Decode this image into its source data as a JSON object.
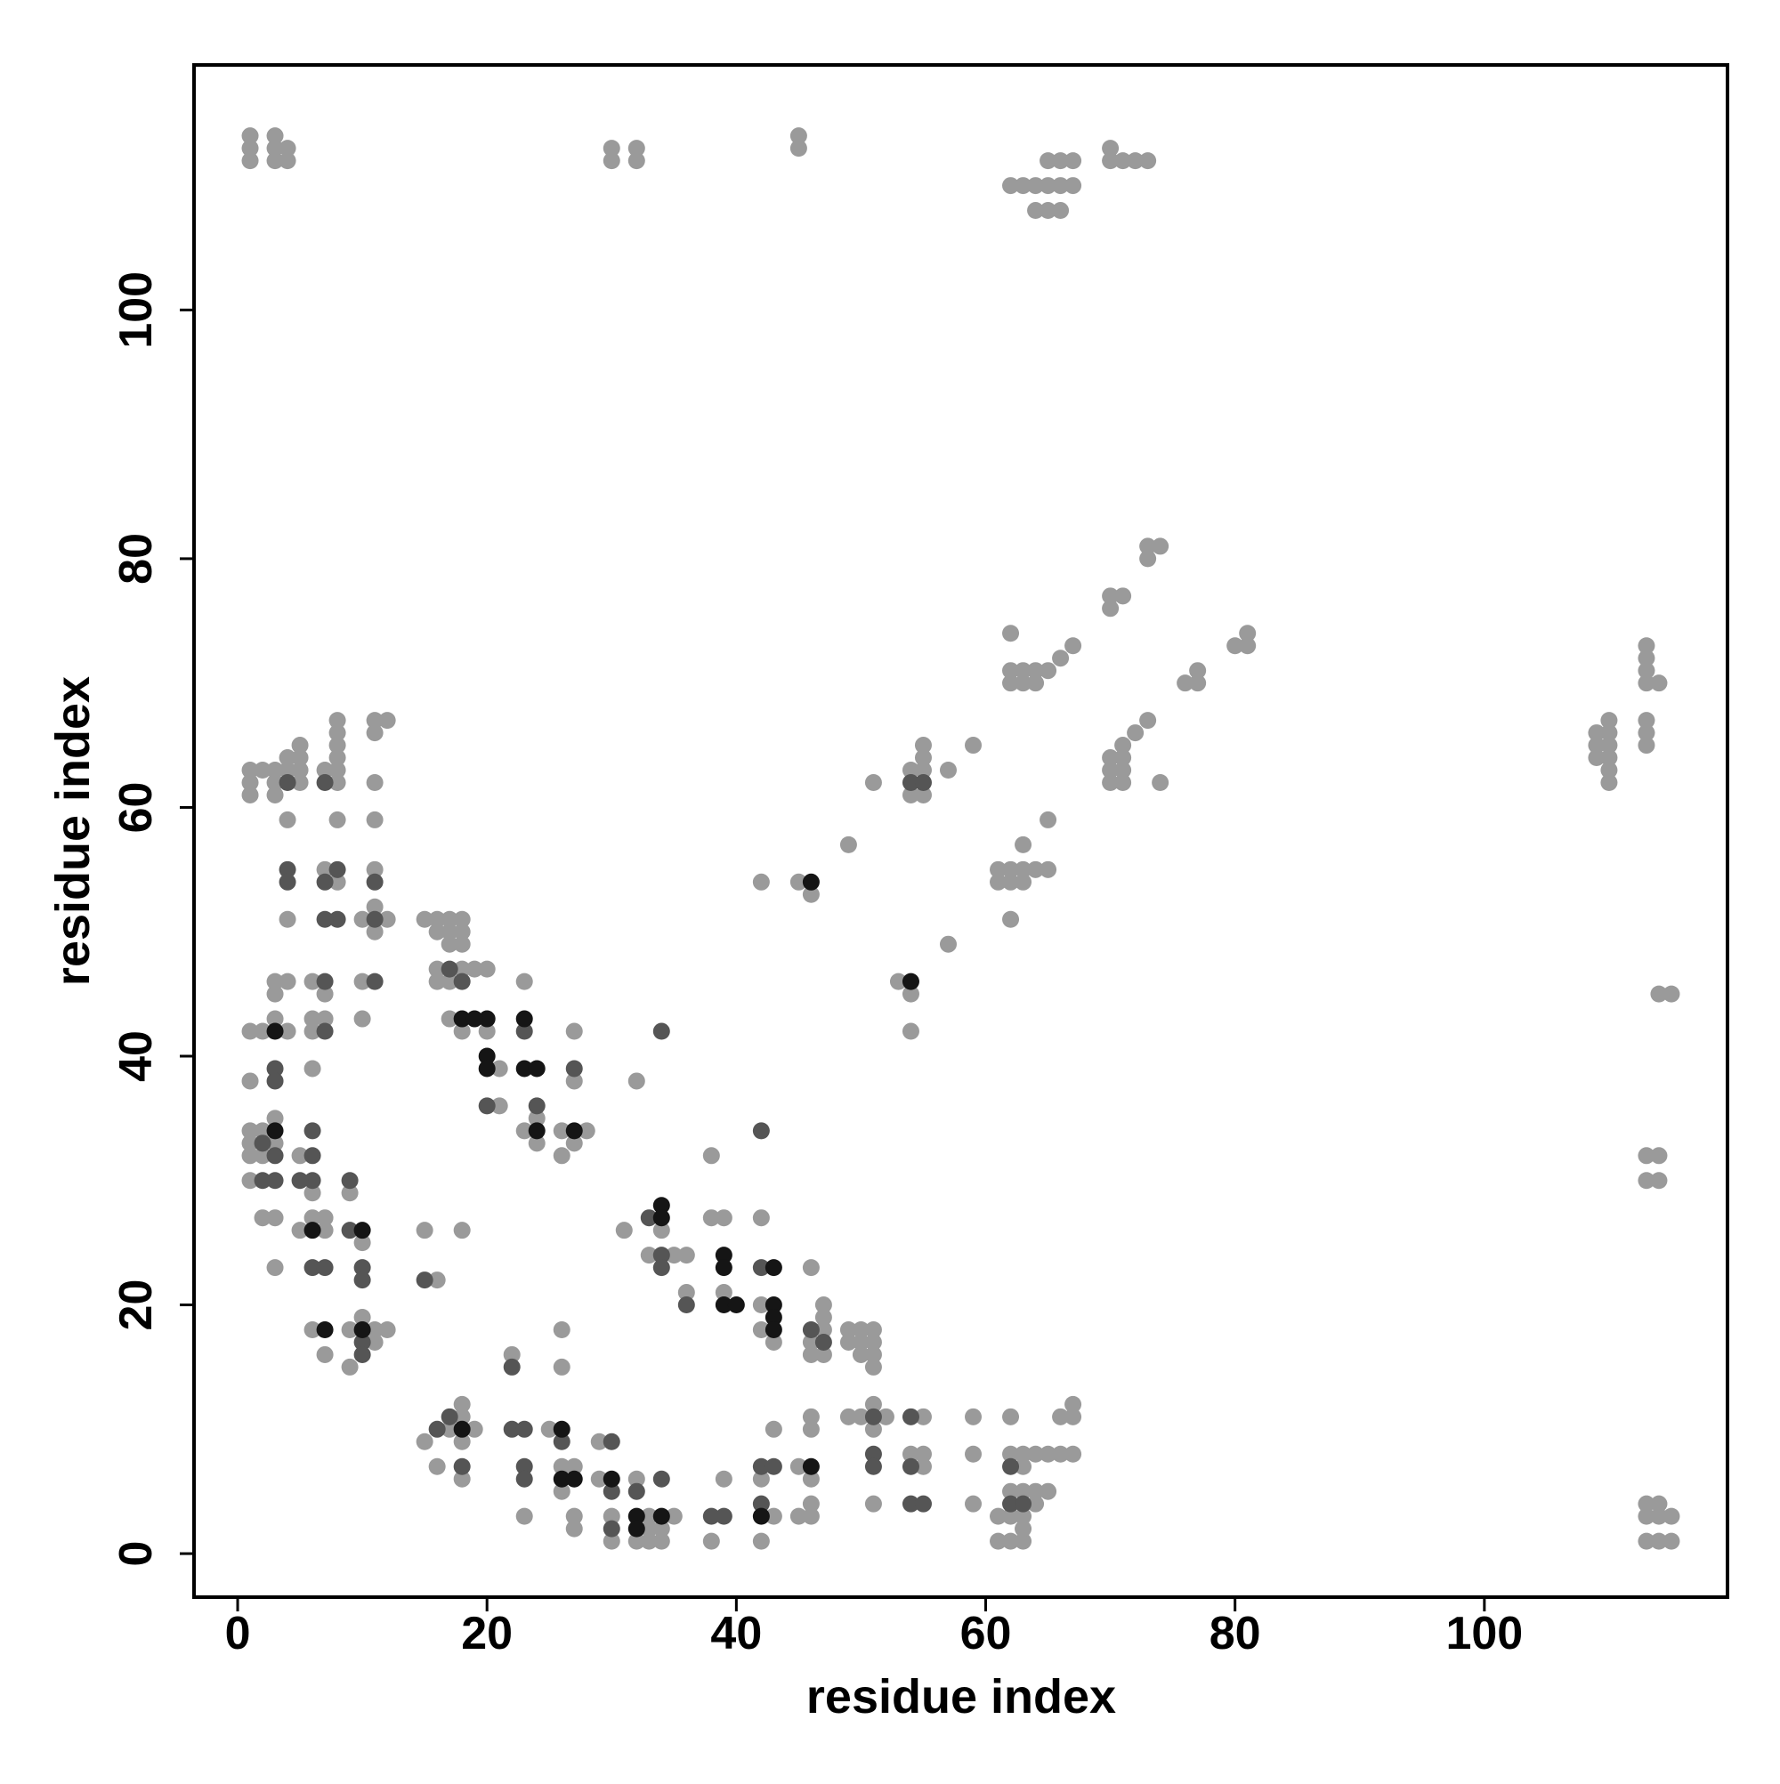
{
  "chart_data": {
    "type": "scatter",
    "x_label": "residue index",
    "y_label": "residue index",
    "xlim": [
      -3.5,
      119.5
    ],
    "ylim": [
      -3.5,
      119.7
    ],
    "xticks": [
      0,
      20,
      40,
      60,
      80,
      100
    ],
    "yticks": [
      0,
      20,
      40,
      60,
      80,
      100
    ],
    "grid": false,
    "series": [
      {
        "color": "#9a9a9a",
        "x": [
          1,
          1,
          1,
          3,
          3,
          3,
          4,
          4,
          30,
          30,
          32,
          32,
          45,
          45,
          62,
          63,
          64,
          65,
          66,
          67,
          64,
          65,
          66,
          65,
          66,
          67,
          70,
          70,
          71,
          72,
          73
        ],
        "values": [
          112,
          113,
          114,
          112,
          113,
          114,
          112,
          113,
          112,
          113,
          112,
          113,
          113,
          114,
          110,
          110,
          110,
          110,
          110,
          110,
          108,
          108,
          108,
          112,
          112,
          112,
          112,
          113,
          112,
          112,
          112
        ]
      },
      {
        "color": "#9a9a9a",
        "x": [
          73,
          73,
          74,
          70,
          70,
          71,
          62,
          62,
          62,
          63,
          63,
          64,
          64,
          65,
          66,
          67,
          80,
          81,
          81,
          76,
          77,
          77,
          72,
          73,
          74,
          70,
          70,
          70,
          71,
          71,
          71,
          71,
          65,
          63,
          61,
          61,
          62,
          62,
          63,
          63,
          64,
          65,
          62,
          59,
          57,
          51,
          54,
          54,
          55,
          55,
          55,
          55,
          49,
          57,
          54,
          54,
          53,
          45,
          46,
          42
        ],
        "values": [
          80,
          81,
          81,
          76,
          77,
          77,
          74,
          70,
          71,
          70,
          71,
          70,
          71,
          71,
          72,
          73,
          73,
          73,
          74,
          70,
          70,
          71,
          66,
          67,
          62,
          62,
          63,
          64,
          62,
          63,
          64,
          65,
          59,
          57,
          54,
          55,
          54,
          55,
          54,
          55,
          55,
          55,
          51,
          65,
          63,
          62,
          61,
          63,
          61,
          63,
          64,
          65,
          57,
          49,
          42,
          45,
          46,
          54,
          53,
          54
        ]
      },
      {
        "color": "#9a9a9a",
        "x": [
          109,
          109,
          109,
          110,
          110,
          110,
          110,
          110,
          110,
          113,
          113,
          113,
          113,
          113,
          113,
          113,
          114,
          114,
          115,
          113,
          113,
          114,
          114,
          113,
          113,
          113,
          114,
          114,
          114,
          115,
          115
        ],
        "values": [
          64,
          65,
          66,
          62,
          63,
          64,
          65,
          66,
          67,
          65,
          66,
          67,
          70,
          71,
          72,
          73,
          70,
          45,
          45,
          30,
          32,
          30,
          32,
          1,
          3,
          4,
          1,
          3,
          4,
          1,
          3
        ]
      },
      {
        "color": "#9a9a9a",
        "x": [
          1,
          1,
          1,
          2,
          3,
          3,
          3,
          4,
          4,
          5,
          5,
          5,
          5,
          7,
          8,
          8,
          8,
          8,
          8,
          8,
          11,
          11,
          12,
          11,
          4,
          8,
          11,
          7,
          8,
          11,
          11,
          11,
          12,
          10,
          4,
          3,
          4,
          6,
          10,
          3,
          7,
          3,
          6,
          7,
          10,
          1,
          2,
          4,
          6,
          1,
          6,
          1,
          1,
          1,
          1,
          2,
          2,
          3,
          3,
          2,
          3,
          5,
          6,
          6,
          7,
          7,
          5,
          9,
          10,
          3,
          6,
          7,
          9,
          9,
          10,
          11,
          11,
          12
        ],
        "values": [
          61,
          62,
          63,
          63,
          61,
          62,
          63,
          63,
          64,
          62,
          63,
          64,
          65,
          63,
          62,
          63,
          64,
          65,
          66,
          67,
          66,
          67,
          67,
          62,
          59,
          59,
          59,
          55,
          54,
          55,
          52,
          50,
          51,
          51,
          51,
          46,
          46,
          46,
          46,
          45,
          45,
          43,
          43,
          43,
          43,
          42,
          42,
          42,
          42,
          38,
          39,
          34,
          33,
          32,
          30,
          34,
          32,
          33,
          35,
          27,
          27,
          32,
          29,
          27,
          27,
          26,
          26,
          29,
          25,
          23,
          18,
          16,
          18,
          15,
          19,
          18,
          17,
          18
        ]
      },
      {
        "color": "#9a9a9a",
        "x": [
          15,
          16,
          17,
          18,
          16,
          17,
          17,
          18,
          18,
          16,
          18,
          19,
          20,
          16,
          17,
          17,
          18,
          20,
          21,
          21,
          23,
          24,
          23,
          24,
          27,
          27,
          26,
          28,
          27,
          26,
          32,
          15,
          18,
          16,
          31,
          34,
          33,
          35,
          36,
          36,
          38,
          38,
          39,
          39,
          42,
          42,
          42,
          43,
          46,
          47,
          47,
          47,
          46,
          46,
          47,
          49,
          50,
          51,
          49,
          50,
          51,
          50,
          51,
          51,
          22,
          26,
          26
        ],
        "values": [
          51,
          51,
          51,
          51,
          50,
          50,
          49,
          50,
          49,
          47,
          47,
          47,
          47,
          46,
          46,
          43,
          42,
          42,
          39,
          36,
          46,
          35,
          34,
          33,
          42,
          38,
          34,
          34,
          33,
          32,
          38,
          26,
          26,
          22,
          26,
          26,
          24,
          24,
          24,
          21,
          32,
          27,
          27,
          21,
          27,
          20,
          18,
          17,
          23,
          18,
          20,
          19,
          17,
          16,
          16,
          18,
          18,
          18,
          17,
          17,
          17,
          16,
          16,
          15,
          16,
          18,
          15
        ]
      },
      {
        "color": "#9a9a9a",
        "x": [
          15,
          17,
          18,
          18,
          19,
          18,
          16,
          18,
          23,
          25,
          26,
          27,
          26,
          27,
          27,
          29,
          29,
          30,
          30,
          32,
          33,
          33,
          32,
          33,
          34,
          34,
          35,
          39,
          38,
          42,
          42,
          43,
          43,
          46,
          46,
          45,
          46,
          46,
          45,
          46,
          49,
          50,
          51,
          52,
          51,
          51,
          55,
          54,
          55,
          55,
          59,
          59,
          59,
          62,
          61,
          61,
          62,
          63,
          62,
          63,
          64,
          65,
          66,
          67,
          63,
          62,
          63,
          64,
          65,
          64,
          62,
          63,
          63,
          66,
          67,
          67
        ],
        "values": [
          9,
          10,
          11,
          12,
          10,
          9,
          7,
          6,
          3,
          10,
          7,
          7,
          5,
          3,
          2,
          9,
          6,
          3,
          1,
          6,
          3,
          2,
          1,
          1,
          2,
          1,
          3,
          6,
          1,
          6,
          1,
          3,
          10,
          11,
          10,
          7,
          6,
          4,
          3,
          3,
          11,
          11,
          12,
          11,
          10,
          4,
          11,
          8,
          8,
          7,
          11,
          8,
          4,
          11,
          3,
          1,
          1,
          1,
          8,
          8,
          8,
          8,
          8,
          8,
          7,
          5,
          5,
          5,
          5,
          4,
          3,
          3,
          2,
          11,
          11,
          12
        ]
      },
      {
        "color": "#555555",
        "x": [
          18,
          17,
          23,
          24,
          27,
          34,
          34,
          33,
          36,
          42,
          46,
          47,
          42,
          34,
          3,
          3,
          2,
          3,
          3,
          2,
          6,
          6,
          5,
          6,
          9,
          9,
          10,
          10,
          6,
          7,
          7,
          8,
          7,
          7,
          8,
          4,
          4,
          11,
          11,
          11,
          7,
          4,
          7,
          22,
          22,
          23,
          23,
          23,
          26,
          30,
          30,
          30,
          32,
          34,
          38,
          39,
          42,
          43,
          42,
          51,
          51,
          51,
          54,
          54,
          54,
          55,
          16,
          17,
          18,
          20,
          15,
          10,
          10,
          62,
          63,
          62,
          54,
          55
        ],
        "values": [
          46,
          47,
          42,
          36,
          39,
          24,
          23,
          27,
          20,
          23,
          18,
          17,
          34,
          42,
          39,
          38,
          33,
          32,
          30,
          30,
          32,
          30,
          30,
          34,
          30,
          26,
          23,
          22,
          23,
          23,
          46,
          51,
          51,
          54,
          55,
          55,
          54,
          51,
          54,
          46,
          42,
          62,
          62,
          15,
          10,
          10,
          7,
          6,
          9,
          9,
          5,
          2,
          5,
          6,
          3,
          3,
          7,
          7,
          4,
          11,
          8,
          7,
          11,
          7,
          4,
          4,
          10,
          11,
          7,
          36,
          22,
          17,
          16,
          4,
          4,
          7,
          62,
          62
        ]
      },
      {
        "color": "#151515",
        "x": [
          20,
          18,
          19,
          20,
          20,
          23,
          23,
          24,
          24,
          27,
          34,
          34,
          39,
          39,
          39,
          40,
          43,
          43,
          43,
          43,
          6,
          10,
          46,
          54,
          26,
          26,
          27,
          30,
          32,
          32,
          42,
          34,
          3,
          3,
          18,
          46,
          10,
          7
        ],
        "values": [
          43,
          43,
          43,
          40,
          39,
          43,
          39,
          39,
          34,
          34,
          28,
          27,
          24,
          23,
          20,
          20,
          20,
          19,
          18,
          23,
          26,
          26,
          54,
          46,
          10,
          6,
          6,
          6,
          3,
          2,
          3,
          3,
          42,
          34,
          10,
          7,
          18,
          18
        ]
      }
    ]
  }
}
